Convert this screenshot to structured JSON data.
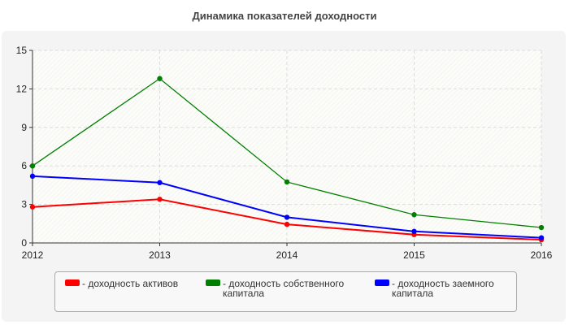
{
  "chart_data": {
    "type": "line",
    "title": "Динамика показателей доходности",
    "x": [
      "2012",
      "2013",
      "2014",
      "2015",
      "2016"
    ],
    "ylim": [
      0,
      15
    ],
    "yticks": [
      0,
      3,
      6,
      9,
      12,
      15
    ],
    "grid": true,
    "legend_placement": "bottom",
    "series": [
      {
        "name": "- доходность активов",
        "color": "#ff0000",
        "values": [
          2.8,
          3.4,
          1.45,
          0.65,
          0.25
        ]
      },
      {
        "name": "- доходность собственного капитала",
        "color": "#008000",
        "values": [
          6.0,
          12.8,
          4.75,
          2.2,
          1.2
        ]
      },
      {
        "name": "- доходность заемного капитала",
        "color": "#0000ff",
        "values": [
          5.2,
          4.7,
          2.0,
          0.9,
          0.4
        ]
      }
    ]
  }
}
